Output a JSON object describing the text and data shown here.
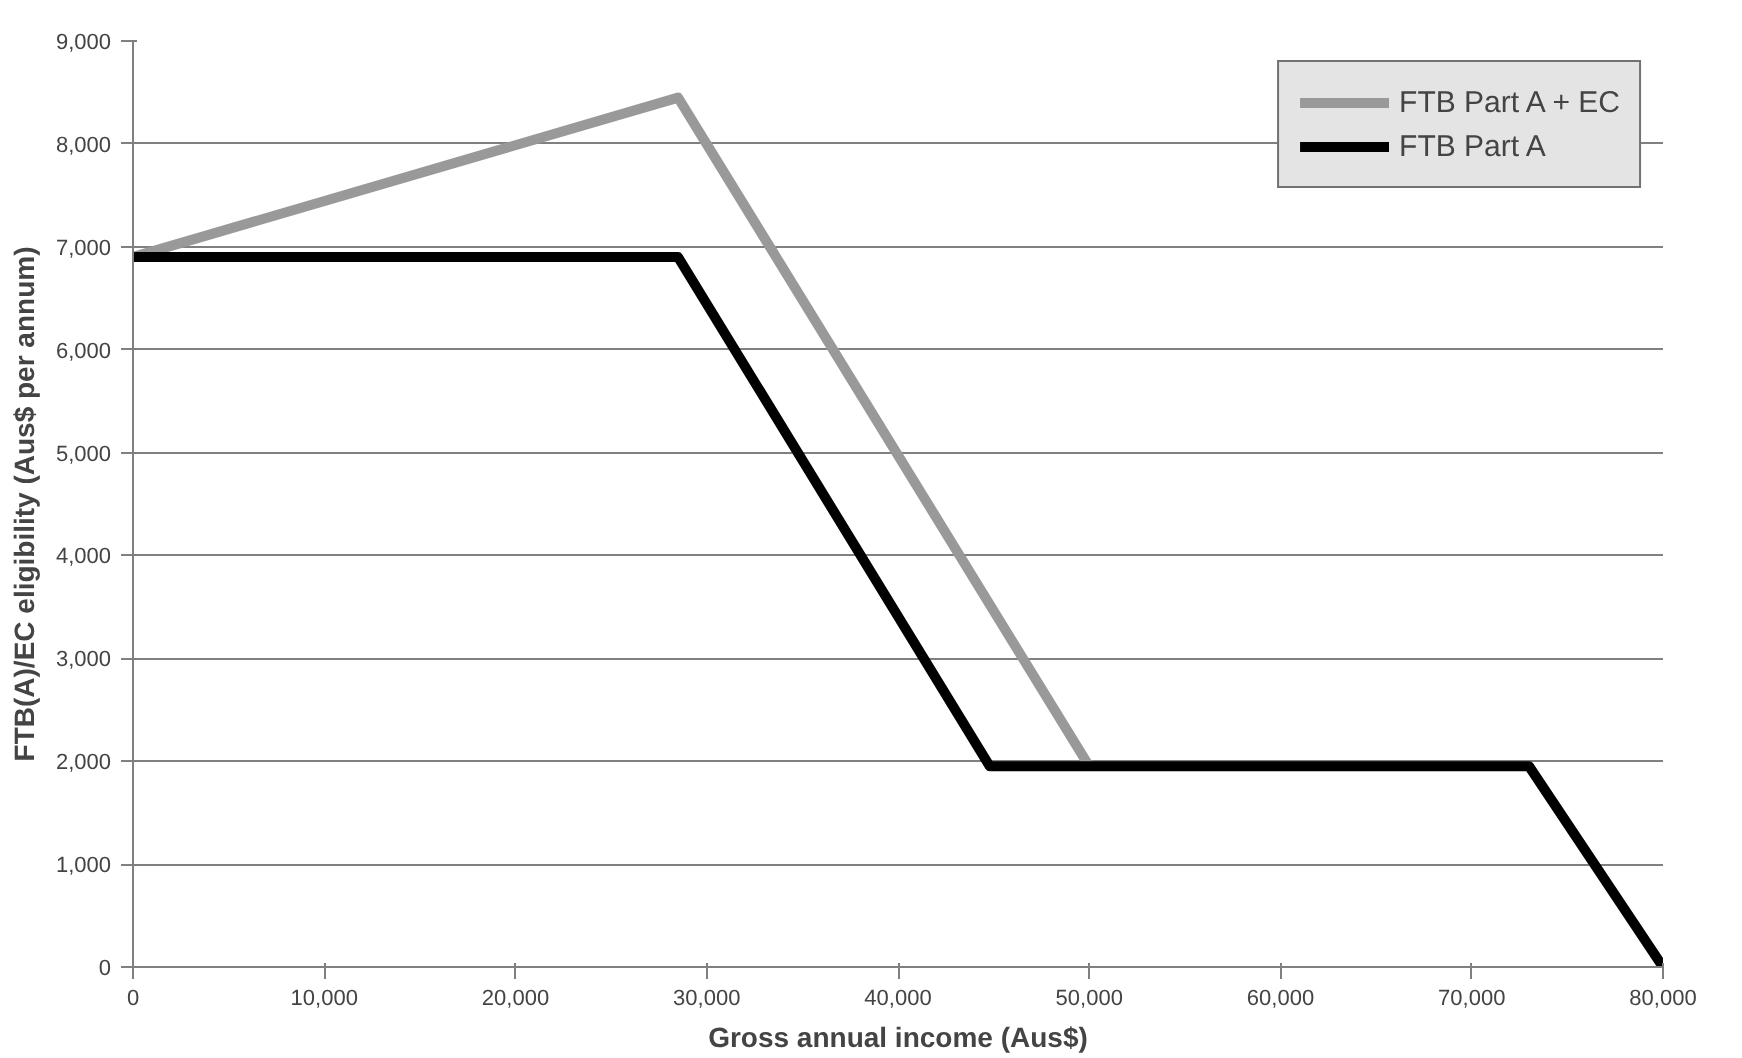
{
  "chart_data": {
    "type": "line",
    "xlabel": "Gross annual income (Aus$)",
    "ylabel": "FTB(A)/EC eligibility (Aus$ per annum)",
    "xlim": [
      0,
      80000
    ],
    "xticks": [
      {
        "value": 0,
        "label": "0"
      },
      {
        "value": 10000,
        "label": "10,000"
      },
      {
        "value": 20000,
        "label": "20,000"
      },
      {
        "value": 30000,
        "label": "30,000"
      },
      {
        "value": 40000,
        "label": "40,000"
      },
      {
        "value": 50000,
        "label": "50,000"
      },
      {
        "value": 60000,
        "label": "60,000"
      },
      {
        "value": 70000,
        "label": "70,000"
      },
      {
        "value": 80000,
        "label": "80,000"
      }
    ],
    "ylim": [
      0,
      9000
    ],
    "yticks": [
      {
        "value": 0,
        "label": "0"
      },
      {
        "value": 1000,
        "label": "1,000"
      },
      {
        "value": 2000,
        "label": "2,000"
      },
      {
        "value": 3000,
        "label": "3,000"
      },
      {
        "value": 4000,
        "label": "4,000"
      },
      {
        "value": 5000,
        "label": "5,000"
      },
      {
        "value": 6000,
        "label": "6,000"
      },
      {
        "value": 7000,
        "label": "7,000"
      },
      {
        "value": 8000,
        "label": "8,000"
      },
      {
        "value": 9000,
        "label": "9,000"
      }
    ],
    "series": [
      {
        "name": "FTB Part A + EC",
        "color": "#999999",
        "x": [
          0,
          28500,
          50000
        ],
        "values": [
          6900,
          8450,
          1950
        ]
      },
      {
        "name": "FTB Part A",
        "color": "#000000",
        "x": [
          0,
          28500,
          44800,
          73000,
          80000
        ],
        "values": [
          6900,
          6900,
          1950,
          1950,
          0
        ]
      }
    ],
    "grid": "y",
    "legend": "top right",
    "marker": "none",
    "line_style": "solid"
  }
}
